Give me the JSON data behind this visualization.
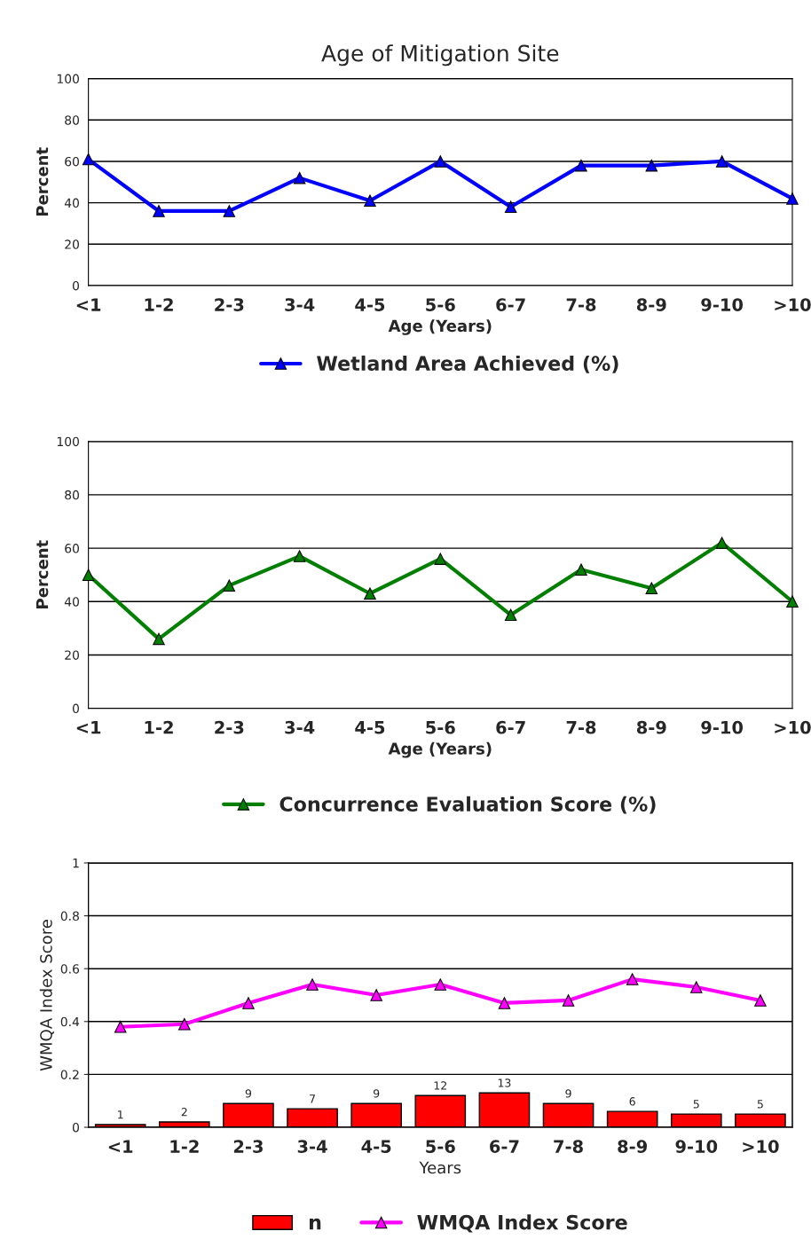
{
  "chart_data": [
    {
      "type": "line",
      "title": "Age of Mitigation Site",
      "xlabel": "Age (Years)",
      "ylabel": "Percent",
      "categories": [
        "<1",
        "1-2",
        "2-3",
        "3-4",
        "4-5",
        "5-6",
        "6-7",
        "7-8",
        "8-9",
        "9-10",
        ">10"
      ],
      "series": [
        {
          "name": "Wetland Area Achieved (%)",
          "color": "#0000ff",
          "values": [
            61,
            36,
            36,
            52,
            41,
            60,
            38,
            58,
            58,
            60,
            42
          ]
        }
      ],
      "ylim": [
        0,
        100
      ],
      "yticks": [
        0,
        20,
        40,
        60,
        80,
        100
      ],
      "grid": "y",
      "legend": "bottom",
      "marker": "triangle"
    },
    {
      "type": "line",
      "xlabel": "Age (Years)",
      "ylabel": "Percent",
      "categories": [
        "<1",
        "1-2",
        "2-3",
        "3-4",
        "4-5",
        "5-6",
        "6-7",
        "7-8",
        "8-9",
        "9-10",
        ">10"
      ],
      "series": [
        {
          "name": "Concurrence Evaluation Score (%)",
          "color": "#007f00",
          "values": [
            50,
            26,
            46,
            57,
            43,
            56,
            35,
            52,
            45,
            62,
            40
          ]
        }
      ],
      "ylim": [
        0,
        100
      ],
      "yticks": [
        0,
        20,
        40,
        60,
        80,
        100
      ],
      "grid": "y",
      "legend": "bottom",
      "marker": "triangle"
    },
    {
      "type": "bar",
      "xlabel": "Years",
      "ylabel": "WMQA Index Score",
      "categories": [
        "<1",
        "1-2",
        "2-3",
        "3-4",
        "4-5",
        "5-6",
        "6-7",
        "7-8",
        "8-9",
        "9-10",
        ">10"
      ],
      "series": [
        {
          "name": "n",
          "type": "bar",
          "axis": "y2",
          "color": "#ff0000",
          "values": [
            1,
            2,
            9,
            7,
            9,
            12,
            13,
            9,
            6,
            5,
            5
          ],
          "value_labels": [
            "1",
            "2",
            "9",
            "7",
            "9",
            "12",
            "13",
            "9",
            "6",
            "5",
            "5"
          ]
        },
        {
          "name": "WMQA Index Score",
          "type": "line",
          "color": "#ff00ff",
          "marker": "triangle",
          "values": [
            0.38,
            0.39,
            0.47,
            0.54,
            0.5,
            0.54,
            0.47,
            0.48,
            0.56,
            0.53,
            0.48
          ]
        }
      ],
      "ylim": [
        0,
        1
      ],
      "yticks": [
        0,
        {
          "value": 0.2,
          "label": "0.2"
        },
        {
          "value": 0.4,
          "label": "0.4"
        },
        {
          "value": 0.6,
          "label": "0.6"
        },
        {
          "value": 0.8,
          "label": "0.8"
        },
        1
      ],
      "y2lim": [
        0,
        100
      ],
      "grid": "y",
      "legend": "bottom"
    }
  ]
}
